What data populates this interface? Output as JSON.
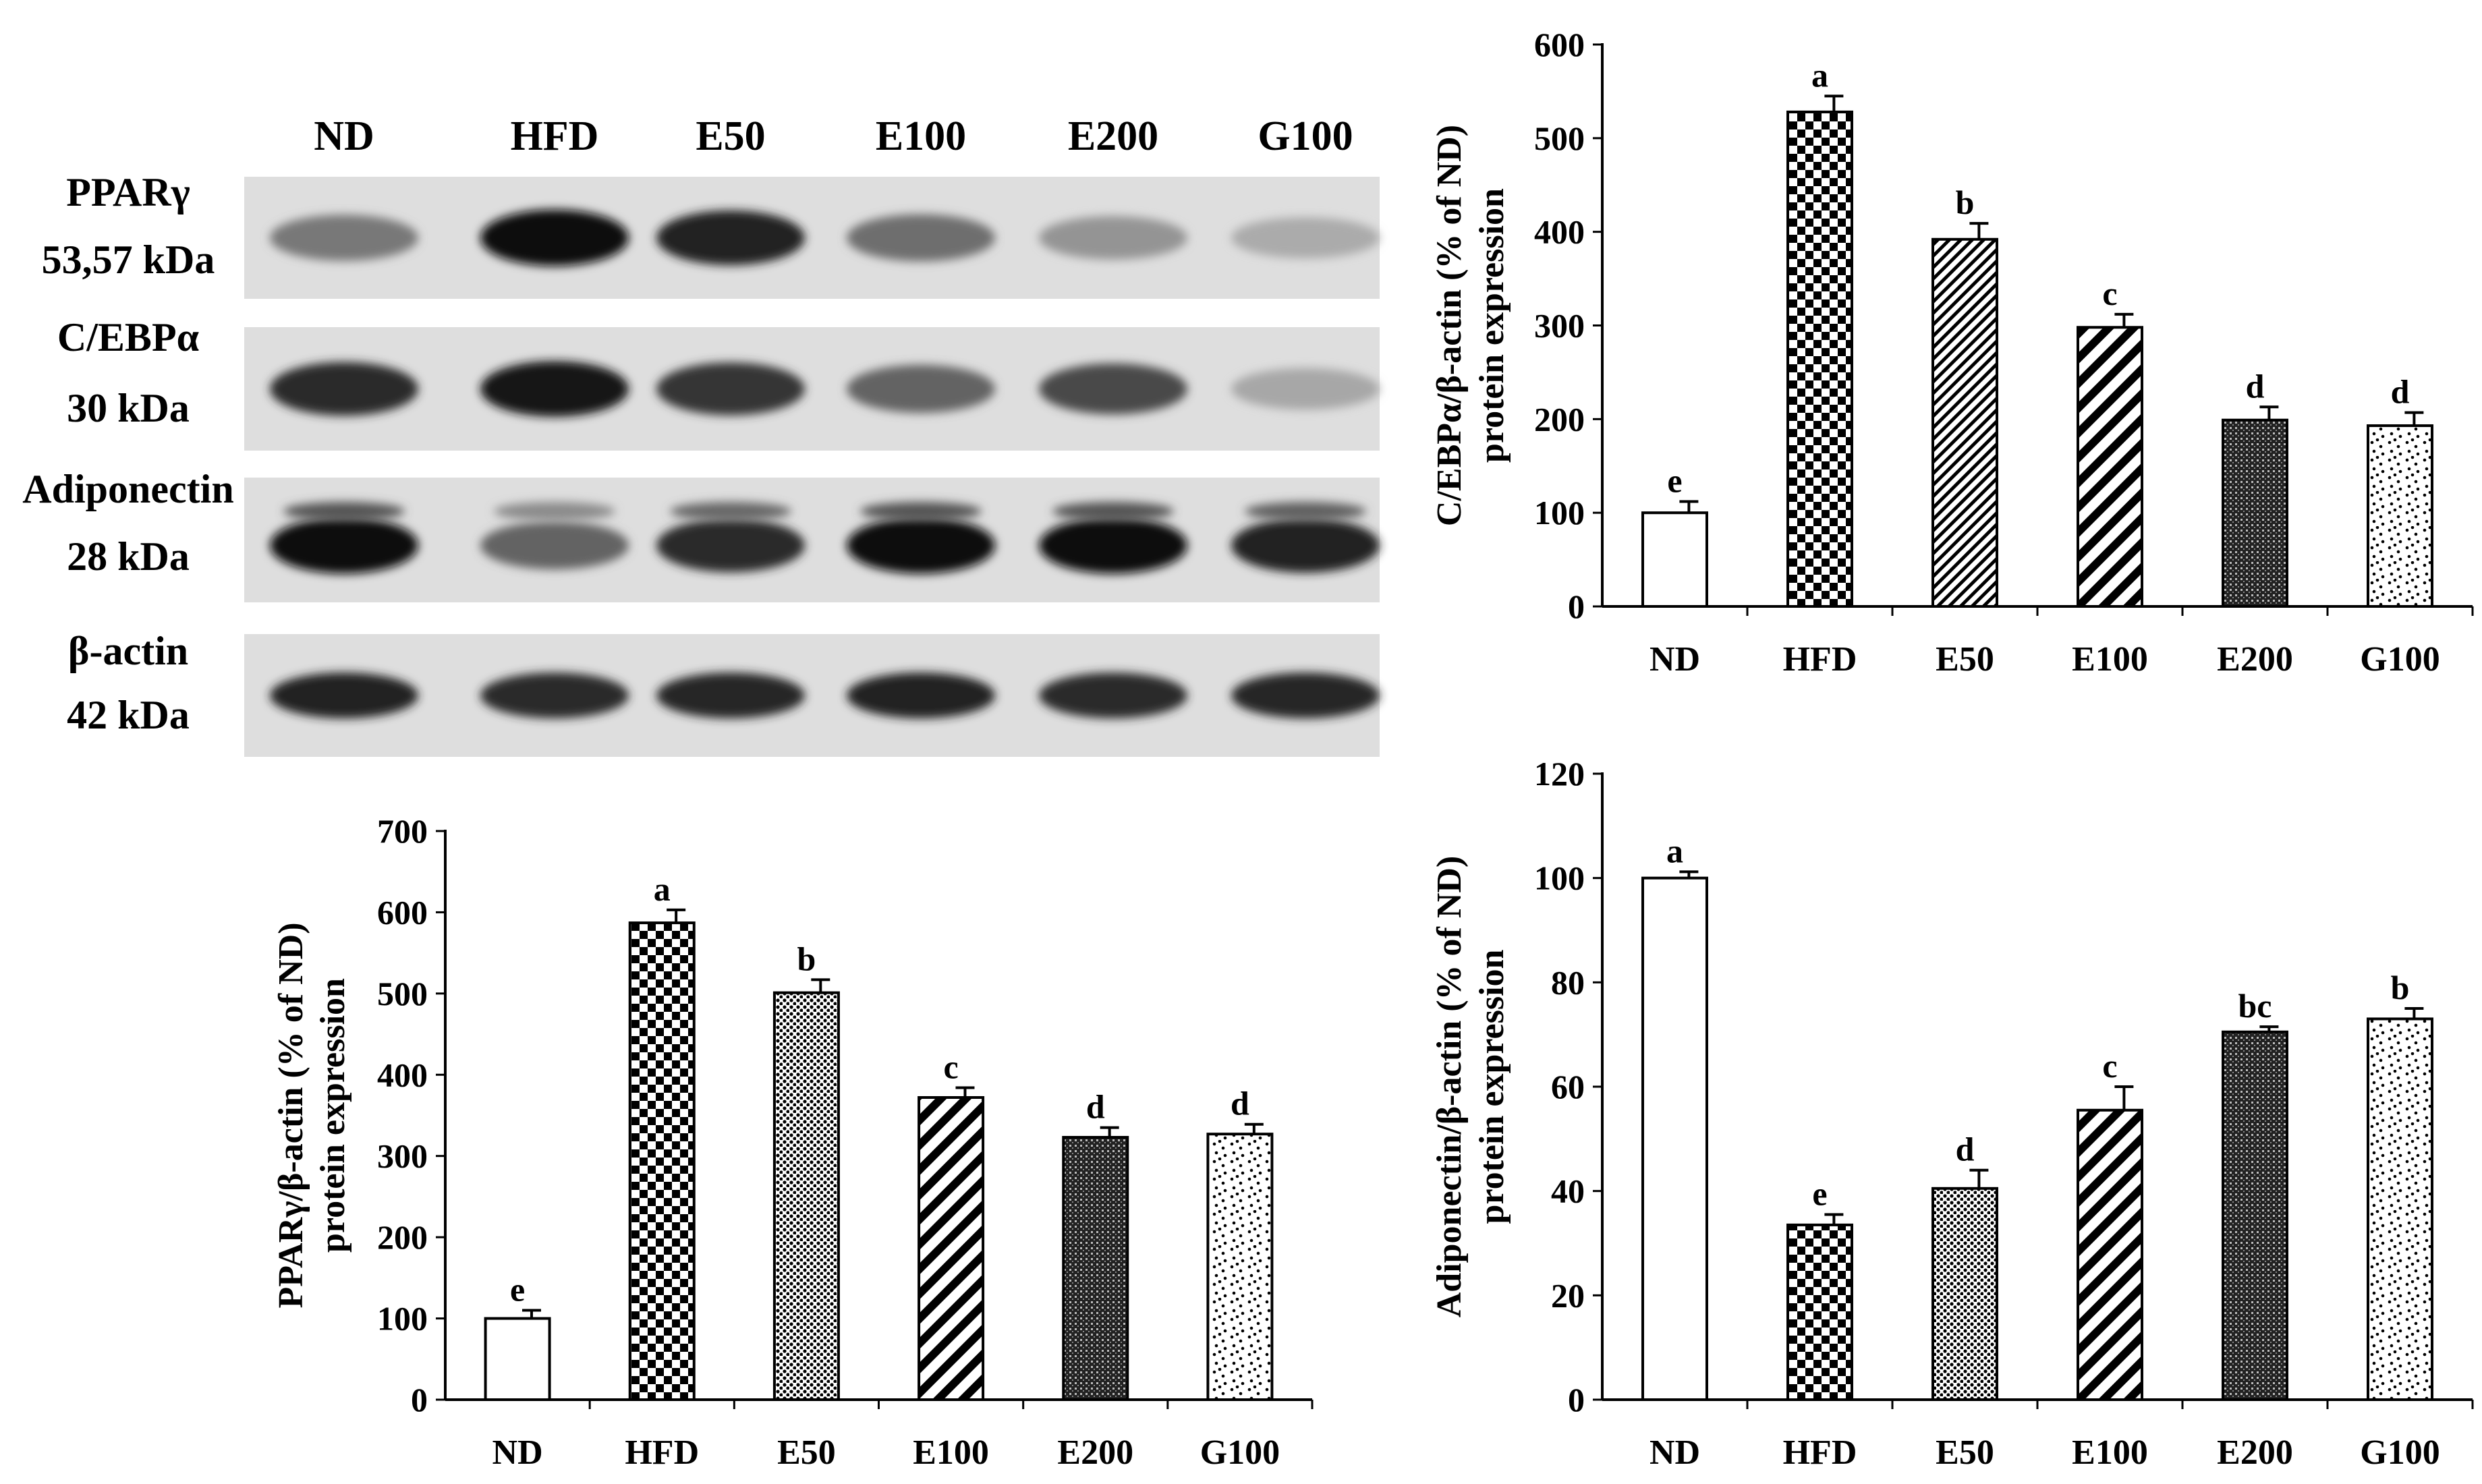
{
  "blot": {
    "lanes": [
      "ND",
      "HFD",
      "E50",
      "E100",
      "E200",
      "G100"
    ],
    "rows": [
      {
        "name": "PPARγ",
        "size": "53,57 kDa",
        "intensity": [
          0.45,
          1.0,
          0.9,
          0.5,
          0.3,
          0.18
        ]
      },
      {
        "name": "C/EBPα",
        "size": "30 kDa",
        "intensity": [
          0.85,
          0.95,
          0.8,
          0.55,
          0.7,
          0.2
        ]
      },
      {
        "name": "Adiponectin",
        "size": "28 kDa",
        "intensity": [
          1.0,
          0.55,
          0.85,
          1.0,
          1.0,
          0.9
        ]
      },
      {
        "name": "β-actin",
        "size": "42 kDa",
        "intensity": [
          0.9,
          0.85,
          0.87,
          0.9,
          0.85,
          0.88
        ]
      }
    ]
  },
  "chart_data": [
    {
      "type": "bar",
      "id": "ppar",
      "categories": [
        "ND",
        "HFD",
        "E50",
        "E100",
        "E200",
        "G100"
      ],
      "values": [
        100,
        587,
        501,
        372,
        323,
        327
      ],
      "errors": [
        10,
        16,
        16,
        12,
        12,
        12
      ],
      "letters": [
        "e",
        "a",
        "b",
        "c",
        "d",
        "d"
      ],
      "ylabel_lines": [
        "PPARγ/β-actin (% of ND)",
        "protein expression"
      ],
      "xlabel": "",
      "ylim": [
        0,
        700
      ],
      "yticks": [
        0,
        100,
        200,
        300,
        400,
        500,
        600,
        700
      ],
      "patterns": [
        "none",
        "checker",
        "dots",
        "diag",
        "grid",
        "sparse"
      ]
    },
    {
      "type": "bar",
      "id": "cebp",
      "categories": [
        "ND",
        "HFD",
        "E50",
        "E100",
        "E200",
        "G100"
      ],
      "values": [
        100,
        528,
        392,
        298,
        199,
        193
      ],
      "errors": [
        12,
        17,
        17,
        14,
        14,
        14
      ],
      "letters": [
        "e",
        "a",
        "b",
        "c",
        "d",
        "d"
      ],
      "ylabel_lines": [
        "C/EBPα/β-actin (% of ND)",
        "protein expression"
      ],
      "xlabel": "",
      "ylim": [
        0,
        600
      ],
      "yticks": [
        0,
        100,
        200,
        300,
        400,
        500,
        600
      ],
      "patterns": [
        "none",
        "checker",
        "diagfine",
        "diag",
        "grid",
        "sparse"
      ]
    },
    {
      "type": "bar",
      "id": "adipo",
      "categories": [
        "ND",
        "HFD",
        "E50",
        "E100",
        "E200",
        "G100"
      ],
      "values": [
        100,
        33.5,
        40.5,
        55.5,
        70.5,
        73
      ],
      "errors": [
        1.2,
        2,
        3.5,
        4.5,
        1,
        2
      ],
      "letters": [
        "a",
        "e",
        "d",
        "c",
        "bc",
        "b"
      ],
      "ylabel_lines": [
        "Adiponectin/β-actin (% of ND)",
        "protein expression"
      ],
      "xlabel": "",
      "ylim": [
        0,
        120
      ],
      "yticks": [
        0,
        20,
        40,
        60,
        80,
        100,
        120
      ],
      "patterns": [
        "none",
        "checker",
        "dots",
        "diag",
        "grid",
        "sparse"
      ]
    }
  ]
}
